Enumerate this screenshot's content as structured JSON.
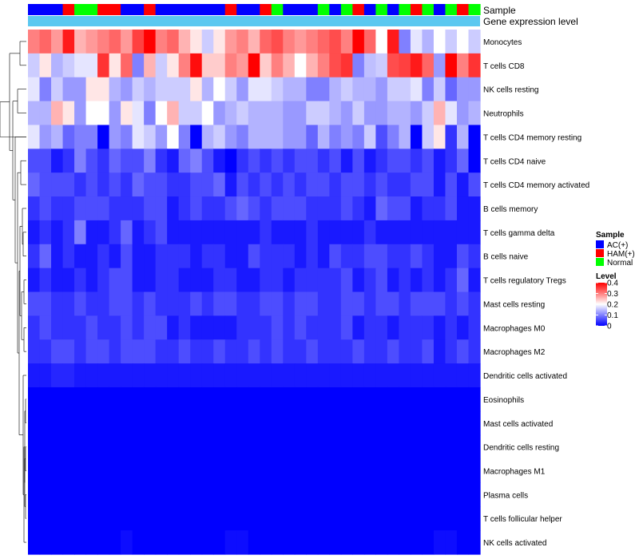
{
  "chart_data": {
    "type": "heatmap",
    "title": "",
    "annotation_tracks": [
      {
        "name": "Sample",
        "type": "categorical"
      },
      {
        "name": "Gene expression level",
        "type": "continuous"
      }
    ],
    "sample_groups": [
      "AC(+)",
      "AC(+)",
      "AC(+)",
      "HAM(+)",
      "Normal",
      "Normal",
      "HAM(+)",
      "HAM(+)",
      "AC(+)",
      "AC(+)",
      "HAM(+)",
      "AC(+)",
      "AC(+)",
      "AC(+)",
      "AC(+)",
      "AC(+)",
      "AC(+)",
      "HAM(+)",
      "AC(+)",
      "AC(+)",
      "HAM(+)",
      "Normal",
      "AC(+)",
      "AC(+)",
      "AC(+)",
      "Normal",
      "AC(+)",
      "Normal",
      "HAM(+)",
      "AC(+)",
      "Normal",
      "AC(+)",
      "Normal",
      "HAM(+)",
      "Normal",
      "AC(+)",
      "Normal",
      "HAM(+)",
      "Normal"
    ],
    "rows": [
      "Monocytes",
      "T cells CD8",
      "NK cells resting",
      "Neutrophils",
      "T cells CD4 memory resting",
      "T cells CD4 naive",
      "T cells CD4 memory activated",
      "B cells memory",
      "T cells gamma delta",
      "B cells naive",
      "T cells regulatory  Tregs",
      "Mast cells resting",
      "Macrophages M0",
      "Macrophages M2",
      "Dendritic cells activated",
      "Eosinophils",
      "Mast cells activated",
      "Dendritic cells resting",
      "Macrophages M1",
      "Plasma cells",
      "T cells follicular helper",
      "NK cells activated"
    ],
    "values": [
      [
        0.3,
        0.32,
        0.28,
        0.38,
        0.26,
        0.28,
        0.3,
        0.32,
        0.28,
        0.35,
        0.4,
        0.3,
        0.32,
        0.26,
        0.22,
        0.16,
        0.22,
        0.28,
        0.3,
        0.26,
        0.32,
        0.34,
        0.3,
        0.28,
        0.3,
        0.32,
        0.34,
        0.3,
        0.4,
        0.32,
        0.2,
        0.38,
        0.1,
        0.18,
        0.14,
        0.2,
        0.16,
        0.2,
        0.16
      ],
      [
        0.16,
        0.22,
        0.14,
        0.16,
        0.18,
        0.18,
        0.36,
        0.22,
        0.32,
        0.1,
        0.26,
        0.16,
        0.22,
        0.3,
        0.39,
        0.24,
        0.24,
        0.3,
        0.28,
        0.4,
        0.24,
        0.3,
        0.26,
        0.2,
        0.26,
        0.3,
        0.34,
        0.36,
        0.1,
        0.15,
        0.16,
        0.34,
        0.35,
        0.38,
        0.32,
        0.12,
        0.4,
        0.3,
        0.36
      ],
      [
        0.18,
        0.1,
        0.16,
        0.12,
        0.12,
        0.22,
        0.22,
        0.14,
        0.12,
        0.16,
        0.14,
        0.16,
        0.16,
        0.16,
        0.22,
        0.14,
        0.2,
        0.16,
        0.12,
        0.18,
        0.18,
        0.16,
        0.14,
        0.14,
        0.1,
        0.1,
        0.14,
        0.16,
        0.14,
        0.14,
        0.12,
        0.16,
        0.16,
        0.18,
        0.1,
        0.16,
        0.08,
        0.12,
        0.12
      ],
      [
        0.14,
        0.14,
        0.26,
        0.22,
        0.12,
        0.2,
        0.2,
        0.12,
        0.22,
        0.18,
        0.1,
        0.2,
        0.26,
        0.16,
        0.16,
        0.2,
        0.12,
        0.14,
        0.16,
        0.14,
        0.14,
        0.14,
        0.12,
        0.12,
        0.16,
        0.16,
        0.14,
        0.12,
        0.16,
        0.12,
        0.12,
        0.14,
        0.14,
        0.12,
        0.16,
        0.26,
        0.18,
        0.12,
        0.14
      ],
      [
        0.18,
        0.12,
        0.14,
        0.08,
        0.1,
        0.1,
        0.0,
        0.12,
        0.1,
        0.18,
        0.16,
        0.12,
        0.2,
        0.1,
        0.0,
        0.14,
        0.16,
        0.12,
        0.1,
        0.14,
        0.14,
        0.14,
        0.12,
        0.12,
        0.08,
        0.14,
        0.1,
        0.12,
        0.1,
        0.16,
        0.06,
        0.1,
        0.14,
        0.0,
        0.16,
        0.22,
        0.04,
        0.14,
        0.0
      ],
      [
        0.06,
        0.06,
        0.02,
        0.04,
        0.1,
        0.06,
        0.04,
        0.08,
        0.06,
        0.06,
        0.1,
        0.04,
        0.02,
        0.08,
        0.1,
        0.06,
        0.02,
        0.0,
        0.04,
        0.06,
        0.04,
        0.06,
        0.04,
        0.06,
        0.06,
        0.04,
        0.06,
        0.02,
        0.06,
        0.02,
        0.04,
        0.06,
        0.06,
        0.04,
        0.06,
        0.02,
        0.04,
        0.08,
        0.0
      ],
      [
        0.08,
        0.06,
        0.06,
        0.06,
        0.04,
        0.06,
        0.04,
        0.06,
        0.04,
        0.08,
        0.06,
        0.06,
        0.04,
        0.04,
        0.06,
        0.06,
        0.08,
        0.02,
        0.06,
        0.04,
        0.06,
        0.04,
        0.06,
        0.04,
        0.06,
        0.06,
        0.04,
        0.06,
        0.06,
        0.04,
        0.06,
        0.04,
        0.04,
        0.06,
        0.06,
        0.02,
        0.06,
        0.02,
        0.06
      ],
      [
        0.04,
        0.06,
        0.04,
        0.04,
        0.06,
        0.06,
        0.06,
        0.04,
        0.04,
        0.04,
        0.06,
        0.06,
        0.02,
        0.04,
        0.06,
        0.04,
        0.04,
        0.06,
        0.08,
        0.06,
        0.04,
        0.06,
        0.06,
        0.06,
        0.04,
        0.04,
        0.04,
        0.06,
        0.04,
        0.02,
        0.08,
        0.06,
        0.06,
        0.02,
        0.04,
        0.04,
        0.06,
        0.02,
        0.02
      ],
      [
        0.02,
        0.04,
        0.02,
        0.04,
        0.1,
        0.02,
        0.02,
        0.04,
        0.08,
        0.02,
        0.04,
        0.06,
        0.02,
        0.02,
        0.02,
        0.02,
        0.02,
        0.02,
        0.02,
        0.02,
        0.04,
        0.02,
        0.02,
        0.02,
        0.04,
        0.02,
        0.02,
        0.02,
        0.02,
        0.04,
        0.02,
        0.02,
        0.02,
        0.02,
        0.02,
        0.02,
        0.02,
        0.02,
        0.02
      ],
      [
        0.04,
        0.08,
        0.02,
        0.04,
        0.02,
        0.02,
        0.04,
        0.02,
        0.06,
        0.02,
        0.02,
        0.04,
        0.04,
        0.04,
        0.02,
        0.04,
        0.04,
        0.02,
        0.02,
        0.06,
        0.04,
        0.04,
        0.04,
        0.02,
        0.04,
        0.02,
        0.06,
        0.04,
        0.04,
        0.06,
        0.06,
        0.04,
        0.04,
        0.06,
        0.04,
        0.02,
        0.02,
        0.06,
        0.04
      ],
      [
        0.02,
        0.04,
        0.02,
        0.02,
        0.04,
        0.02,
        0.04,
        0.06,
        0.06,
        0.02,
        0.02,
        0.04,
        0.04,
        0.02,
        0.02,
        0.02,
        0.04,
        0.04,
        0.02,
        0.02,
        0.04,
        0.04,
        0.02,
        0.04,
        0.04,
        0.04,
        0.04,
        0.06,
        0.02,
        0.04,
        0.06,
        0.02,
        0.04,
        0.02,
        0.04,
        0.02,
        0.04,
        0.08,
        0.02
      ],
      [
        0.06,
        0.06,
        0.04,
        0.04,
        0.06,
        0.04,
        0.04,
        0.06,
        0.06,
        0.04,
        0.06,
        0.04,
        0.04,
        0.04,
        0.06,
        0.04,
        0.06,
        0.06,
        0.04,
        0.04,
        0.06,
        0.06,
        0.04,
        0.06,
        0.06,
        0.04,
        0.04,
        0.06,
        0.06,
        0.04,
        0.06,
        0.06,
        0.04,
        0.06,
        0.06,
        0.06,
        0.04,
        0.06,
        0.04
      ],
      [
        0.04,
        0.06,
        0.04,
        0.04,
        0.04,
        0.06,
        0.04,
        0.04,
        0.06,
        0.04,
        0.06,
        0.06,
        0.02,
        0.04,
        0.02,
        0.02,
        0.02,
        0.02,
        0.04,
        0.04,
        0.04,
        0.06,
        0.04,
        0.06,
        0.04,
        0.04,
        0.04,
        0.06,
        0.02,
        0.04,
        0.04,
        0.02,
        0.04,
        0.04,
        0.04,
        0.02,
        0.04,
        0.02,
        0.04
      ],
      [
        0.04,
        0.04,
        0.06,
        0.06,
        0.04,
        0.06,
        0.06,
        0.04,
        0.06,
        0.06,
        0.06,
        0.04,
        0.04,
        0.06,
        0.04,
        0.04,
        0.06,
        0.04,
        0.04,
        0.06,
        0.04,
        0.06,
        0.04,
        0.04,
        0.06,
        0.04,
        0.04,
        0.04,
        0.06,
        0.04,
        0.04,
        0.06,
        0.04,
        0.04,
        0.06,
        0.02,
        0.04,
        0.06,
        0.04
      ],
      [
        0.02,
        0.02,
        0.03,
        0.03,
        0.02,
        0.02,
        0.02,
        0.02,
        0.02,
        0.02,
        0.02,
        0.02,
        0.02,
        0.02,
        0.02,
        0.02,
        0.02,
        0.02,
        0.02,
        0.02,
        0.02,
        0.02,
        0.02,
        0.02,
        0.02,
        0.02,
        0.02,
        0.02,
        0.02,
        0.02,
        0.02,
        0.02,
        0.02,
        0.02,
        0.02,
        0.02,
        0.02,
        0.02,
        0.02
      ],
      [
        0.0,
        0.0,
        0.0,
        0.0,
        0.0,
        0.0,
        0.0,
        0.0,
        0.0,
        0.0,
        0.0,
        0.0,
        0.0,
        0.0,
        0.0,
        0.0,
        0.0,
        0.0,
        0.0,
        0.0,
        0.0,
        0.0,
        0.0,
        0.0,
        0.0,
        0.0,
        0.0,
        0.0,
        0.0,
        0.0,
        0.0,
        0.0,
        0.0,
        0.0,
        0.0,
        0.0,
        0.0,
        0.0,
        0.0
      ],
      [
        0.0,
        0.0,
        0.0,
        0.0,
        0.0,
        0.0,
        0.0,
        0.0,
        0.0,
        0.0,
        0.0,
        0.0,
        0.0,
        0.0,
        0.0,
        0.0,
        0.0,
        0.0,
        0.0,
        0.0,
        0.0,
        0.0,
        0.0,
        0.0,
        0.0,
        0.0,
        0.0,
        0.0,
        0.0,
        0.0,
        0.0,
        0.0,
        0.0,
        0.0,
        0.0,
        0.0,
        0.0,
        0.0,
        0.0
      ],
      [
        0.0,
        0.0,
        0.0,
        0.0,
        0.0,
        0.0,
        0.0,
        0.0,
        0.0,
        0.0,
        0.0,
        0.0,
        0.0,
        0.0,
        0.0,
        0.0,
        0.0,
        0.0,
        0.0,
        0.0,
        0.0,
        0.0,
        0.0,
        0.0,
        0.0,
        0.0,
        0.0,
        0.0,
        0.0,
        0.0,
        0.0,
        0.0,
        0.0,
        0.0,
        0.0,
        0.0,
        0.0,
        0.0,
        0.0
      ],
      [
        0.0,
        0.0,
        0.0,
        0.0,
        0.0,
        0.0,
        0.0,
        0.0,
        0.0,
        0.0,
        0.0,
        0.0,
        0.0,
        0.0,
        0.0,
        0.0,
        0.0,
        0.0,
        0.0,
        0.0,
        0.0,
        0.0,
        0.0,
        0.0,
        0.0,
        0.0,
        0.0,
        0.0,
        0.0,
        0.0,
        0.0,
        0.0,
        0.0,
        0.0,
        0.0,
        0.0,
        0.0,
        0.0,
        0.0
      ],
      [
        0.0,
        0.0,
        0.0,
        0.0,
        0.0,
        0.0,
        0.0,
        0.0,
        0.0,
        0.0,
        0.0,
        0.0,
        0.0,
        0.0,
        0.0,
        0.0,
        0.0,
        0.0,
        0.0,
        0.0,
        0.0,
        0.0,
        0.0,
        0.0,
        0.0,
        0.0,
        0.0,
        0.0,
        0.0,
        0.0,
        0.0,
        0.0,
        0.0,
        0.0,
        0.0,
        0.0,
        0.0,
        0.0,
        0.0
      ],
      [
        0.0,
        0.0,
        0.0,
        0.0,
        0.0,
        0.0,
        0.0,
        0.0,
        0.0,
        0.0,
        0.0,
        0.0,
        0.0,
        0.0,
        0.0,
        0.0,
        0.0,
        0.0,
        0.0,
        0.0,
        0.0,
        0.0,
        0.0,
        0.0,
        0.0,
        0.0,
        0.0,
        0.0,
        0.0,
        0.0,
        0.0,
        0.0,
        0.0,
        0.0,
        0.0,
        0.0,
        0.0,
        0.0,
        0.0
      ],
      [
        0.0,
        0.0,
        0.0,
        0.0,
        0.0,
        0.0,
        0.0,
        0.0,
        0.01,
        0.0,
        0.0,
        0.0,
        0.0,
        0.0,
        0.0,
        0.0,
        0.0,
        0.01,
        0.01,
        0.0,
        0.0,
        0.0,
        0.0,
        0.0,
        0.0,
        0.0,
        0.0,
        0.0,
        0.0,
        0.0,
        0.0,
        0.0,
        0.0,
        0.0,
        0.0,
        0.01,
        0.01,
        0.0,
        0.0
      ]
    ],
    "color_scale": {
      "name": "Level",
      "min": 0,
      "max": 0.4,
      "ticks": [
        "0.4",
        "0.3",
        "0.2",
        "0.1",
        "0"
      ],
      "low_color": "#0000ff",
      "mid_color": "#ffffff",
      "high_color": "#ff0000"
    },
    "legend": {
      "sample_title": "Sample",
      "entries": [
        {
          "label": "AC(+)",
          "color": "#0000ff"
        },
        {
          "label": "HAM(+)",
          "color": "#ff0000"
        },
        {
          "label": "Normal",
          "color": "#00ff00"
        }
      ],
      "position": "right"
    },
    "expression_track_color": "#5bc8f0",
    "row_dendrogram": true
  }
}
